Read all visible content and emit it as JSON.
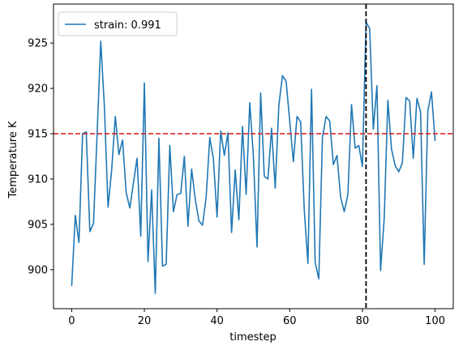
{
  "chart_data": {
    "type": "line",
    "xlabel": "timestep",
    "ylabel": "Temperature K",
    "xlim": [
      -5,
      105
    ],
    "ylim": [
      895.7,
      929.3
    ],
    "xticks": [
      0,
      20,
      40,
      60,
      80,
      100
    ],
    "yticks": [
      900,
      905,
      910,
      915,
      920,
      925
    ],
    "grid": false,
    "legend_placement": "upper-left",
    "series": [
      {
        "name": "strain: 0.991",
        "color": "#1f77b4",
        "x": [
          0,
          1,
          2,
          3,
          4,
          5,
          6,
          7,
          8,
          9,
          10,
          11,
          12,
          13,
          14,
          15,
          16,
          17,
          18,
          19,
          20,
          21,
          22,
          23,
          24,
          25,
          26,
          27,
          28,
          29,
          30,
          31,
          32,
          33,
          34,
          35,
          36,
          37,
          38,
          39,
          40,
          41,
          42,
          43,
          44,
          45,
          46,
          47,
          48,
          49,
          50,
          51,
          52,
          53,
          54,
          55,
          56,
          57,
          58,
          59,
          60,
          61,
          62,
          63,
          64,
          65,
          66,
          67,
          68,
          69,
          70,
          71,
          72,
          73,
          74,
          75,
          76,
          77,
          78,
          79,
          80,
          81,
          82,
          83,
          84,
          85,
          86,
          87,
          88,
          89,
          90,
          91,
          92,
          93,
          94,
          95,
          96,
          97,
          98,
          99,
          100
        ],
        "values": [
          898.2,
          906.0,
          903.0,
          915.0,
          915.2,
          904.2,
          905.1,
          915.0,
          925.2,
          918.0,
          906.9,
          911.0,
          916.9,
          912.7,
          914.3,
          908.5,
          906.8,
          909.6,
          912.3,
          903.7,
          920.6,
          900.9,
          908.8,
          897.4,
          914.5,
          900.4,
          900.6,
          913.7,
          906.4,
          908.3,
          908.4,
          912.5,
          904.8,
          911.1,
          907.8,
          905.4,
          904.9,
          908.0,
          914.6,
          912.2,
          905.8,
          915.3,
          912.6,
          915.1,
          904.1,
          911.0,
          905.5,
          915.8,
          908.3,
          918.4,
          912.5,
          902.5,
          919.5,
          910.3,
          910.0,
          915.6,
          909.0,
          918.1,
          921.4,
          920.8,
          916.4,
          911.9,
          916.9,
          916.3,
          906.6,
          900.7,
          919.9,
          900.8,
          899.0,
          914.6,
          916.9,
          916.4,
          911.6,
          912.6,
          908.0,
          906.4,
          908.3,
          918.2,
          913.4,
          913.7,
          911.4,
          927.3,
          926.6,
          915.5,
          920.3,
          899.9,
          905.7,
          918.7,
          913.3,
          911.5,
          910.8,
          911.8,
          919.0,
          918.6,
          912.3,
          918.9,
          917.4,
          900.6,
          917.5,
          919.6,
          914.2
        ]
      }
    ],
    "hlines": [
      {
        "y": 915,
        "color": "#d62728",
        "style": "dashed"
      }
    ],
    "vlines": [
      {
        "x": 81,
        "color": "#000000",
        "style": "dashed"
      }
    ]
  }
}
